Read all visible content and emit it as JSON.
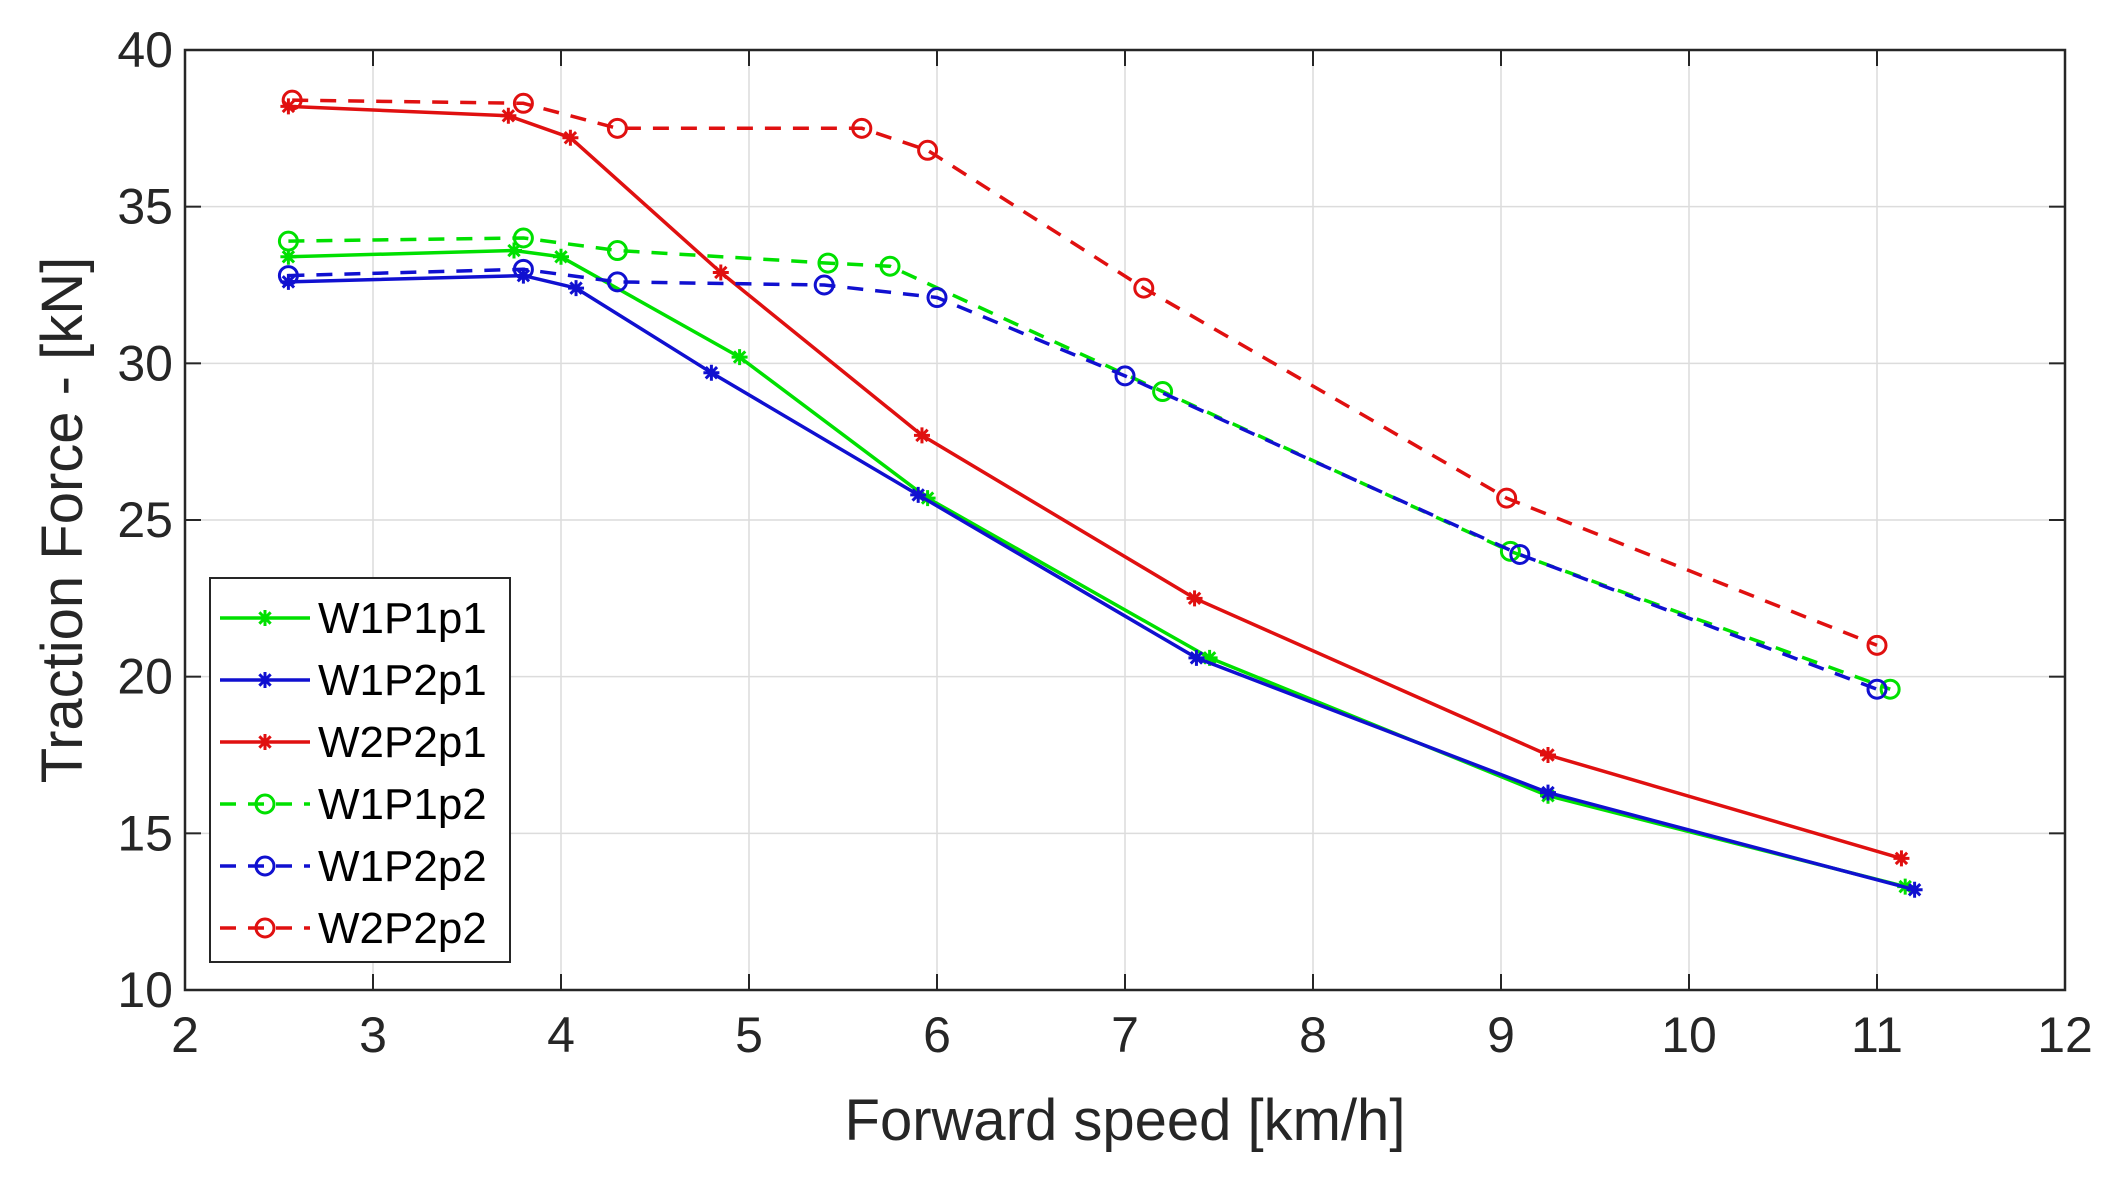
{
  "chart_data": {
    "type": "line",
    "title": "",
    "xlabel": "Forward speed [km/h]",
    "ylabel": "Traction Force - [kN]",
    "xlim": [
      2,
      12
    ],
    "ylim": [
      10,
      40
    ],
    "xticks": [
      2,
      3,
      4,
      5,
      6,
      7,
      8,
      9,
      10,
      11,
      12
    ],
    "yticks": [
      10,
      15,
      20,
      25,
      30,
      35,
      40
    ],
    "grid": true,
    "legend_position": "bottom-left",
    "series": [
      {
        "name": "W1P1p1",
        "color": "#00e000",
        "style": "solid",
        "marker": "asterisk",
        "x": [
          2.55,
          3.75,
          4.0,
          4.95,
          5.95,
          7.45,
          9.25,
          11.15
        ],
        "y": [
          33.4,
          33.6,
          33.4,
          30.2,
          25.7,
          20.6,
          16.2,
          13.3
        ]
      },
      {
        "name": "W1P2p1",
        "color": "#1010d0",
        "style": "solid",
        "marker": "asterisk",
        "x": [
          2.55,
          3.8,
          4.08,
          4.8,
          5.9,
          7.38,
          9.25,
          11.2
        ],
        "y": [
          32.6,
          32.8,
          32.4,
          29.7,
          25.8,
          20.6,
          16.3,
          13.2
        ]
      },
      {
        "name": "W2P2p1",
        "color": "#e01010",
        "style": "solid",
        "marker": "asterisk",
        "x": [
          2.55,
          3.72,
          4.05,
          4.85,
          5.92,
          7.37,
          9.25,
          11.13
        ],
        "y": [
          38.2,
          37.9,
          37.2,
          32.9,
          27.7,
          22.5,
          17.5,
          14.2
        ]
      },
      {
        "name": "W1P1p2",
        "color": "#00e000",
        "style": "dashed",
        "marker": "circle",
        "x": [
          2.55,
          3.8,
          4.3,
          5.42,
          5.75,
          7.2,
          9.05,
          11.07
        ],
        "y": [
          33.9,
          34.0,
          33.6,
          33.2,
          33.1,
          29.1,
          24.0,
          19.6
        ]
      },
      {
        "name": "W1P2p2",
        "color": "#1010d0",
        "style": "dashed",
        "marker": "circle",
        "x": [
          2.55,
          3.8,
          4.3,
          5.4,
          6.0,
          7.0,
          9.1,
          11.0
        ],
        "y": [
          32.8,
          33.0,
          32.6,
          32.5,
          32.1,
          29.6,
          23.9,
          19.6
        ]
      },
      {
        "name": "W2P2p2",
        "color": "#e01010",
        "style": "dashed",
        "marker": "circle",
        "x": [
          2.57,
          3.8,
          4.3,
          5.6,
          5.95,
          7.1,
          9.03,
          11.0
        ],
        "y": [
          38.4,
          38.3,
          37.5,
          37.5,
          36.8,
          32.4,
          25.7,
          21.0
        ]
      }
    ]
  }
}
